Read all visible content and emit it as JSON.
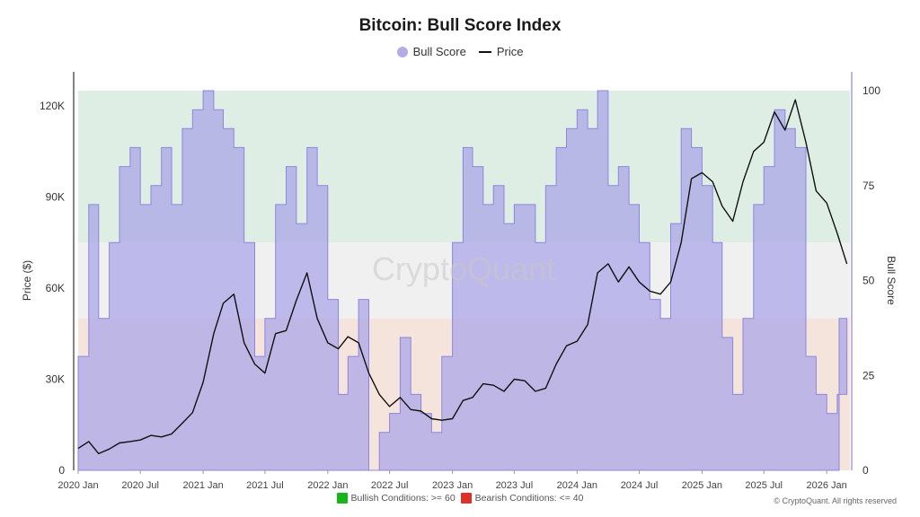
{
  "chart_data": {
    "type": "area",
    "title": "Bitcoin: Bull Score Index",
    "x_tick_labels": [
      "2020 Jan",
      "2020 Jul",
      "2021 Jan",
      "2021 Jul",
      "2022 Jan",
      "2022 Jul",
      "2023 Jan",
      "2023 Jul",
      "2024 Jan",
      "2024 Jul",
      "2025 Jan",
      "2025 Jul",
      "2026 Jan"
    ],
    "x_range": [
      "2020-01-01",
      "2026-03-10"
    ],
    "y_left": {
      "label": "Price ($)",
      "range": [
        0,
        125000
      ],
      "tick_values": [
        0,
        30000,
        60000,
        90000,
        120000
      ],
      "tick_labels": [
        "0",
        "30K",
        "60K",
        "90K",
        "120K"
      ]
    },
    "y_right": {
      "label": "Bull Score",
      "range": [
        0,
        100
      ],
      "tick_values": [
        0,
        25,
        50,
        75,
        100
      ],
      "tick_labels": [
        "0",
        "25",
        "50",
        "75",
        "100"
      ]
    },
    "zones": [
      {
        "name": "bullish",
        "from": 60,
        "to": 100,
        "color": "#dfeee4"
      },
      {
        "name": "neutral",
        "from": 40,
        "to": 60,
        "color": "#f0f0f0"
      },
      {
        "name": "bearish",
        "from": 0,
        "to": 40,
        "color": "#f5e4dc"
      }
    ],
    "series": [
      {
        "name": "Bull Score",
        "axis": "right",
        "color": "#a9a3e8",
        "x": [
          "2020-01-01",
          "2020-02-01",
          "2020-03-01",
          "2020-04-01",
          "2020-05-01",
          "2020-06-01",
          "2020-07-01",
          "2020-08-01",
          "2020-09-01",
          "2020-10-01",
          "2020-11-01",
          "2020-12-01",
          "2021-01-01",
          "2021-02-01",
          "2021-03-01",
          "2021-04-01",
          "2021-05-01",
          "2021-06-01",
          "2021-07-01",
          "2021-08-01",
          "2021-09-01",
          "2021-10-01",
          "2021-11-01",
          "2021-12-01",
          "2022-01-01",
          "2022-02-01",
          "2022-03-01",
          "2022-04-01",
          "2022-05-01",
          "2022-06-01",
          "2022-07-01",
          "2022-08-01",
          "2022-09-01",
          "2022-10-01",
          "2022-11-01",
          "2022-12-01",
          "2023-01-01",
          "2023-02-01",
          "2023-03-01",
          "2023-04-01",
          "2023-05-01",
          "2023-06-01",
          "2023-07-01",
          "2023-08-01",
          "2023-09-01",
          "2023-10-01",
          "2023-11-01",
          "2023-12-01",
          "2024-01-01",
          "2024-02-01",
          "2024-03-01",
          "2024-04-01",
          "2024-05-01",
          "2024-06-01",
          "2024-07-01",
          "2024-08-01",
          "2024-09-01",
          "2024-10-01",
          "2024-11-01",
          "2024-12-01",
          "2025-01-01",
          "2025-02-01",
          "2025-03-01",
          "2025-04-01",
          "2025-05-01",
          "2025-06-01",
          "2025-07-01",
          "2025-08-01",
          "2025-09-01",
          "2025-10-01",
          "2025-11-01",
          "2025-12-01",
          "2026-01-01",
          "2026-02-01",
          "2026-03-01"
        ],
        "values": [
          30,
          70,
          40,
          60,
          80,
          85,
          70,
          75,
          85,
          70,
          90,
          95,
          100,
          95,
          90,
          85,
          60,
          30,
          40,
          70,
          80,
          65,
          85,
          75,
          45,
          20,
          30,
          45,
          0,
          10,
          15,
          35,
          20,
          15,
          10,
          30,
          60,
          85,
          80,
          70,
          75,
          65,
          70,
          70,
          60,
          75,
          85,
          90,
          95,
          90,
          100,
          75,
          80,
          70,
          60,
          45,
          40,
          65,
          90,
          85,
          75,
          60,
          35,
          20,
          40,
          70,
          80,
          95,
          90,
          85,
          30,
          20,
          15,
          20,
          40
        ]
      },
      {
        "name": "Price",
        "axis": "left",
        "color": "#111111",
        "x": [
          "2020-01-01",
          "2020-02-01",
          "2020-03-01",
          "2020-04-01",
          "2020-05-01",
          "2020-06-01",
          "2020-07-01",
          "2020-08-01",
          "2020-09-01",
          "2020-10-01",
          "2020-11-01",
          "2020-12-01",
          "2021-01-01",
          "2021-02-01",
          "2021-03-01",
          "2021-04-01",
          "2021-05-01",
          "2021-06-01",
          "2021-07-01",
          "2021-08-01",
          "2021-09-01",
          "2021-10-01",
          "2021-11-01",
          "2021-12-01",
          "2022-01-01",
          "2022-02-01",
          "2022-03-01",
          "2022-04-01",
          "2022-05-01",
          "2022-06-01",
          "2022-07-01",
          "2022-08-01",
          "2022-09-01",
          "2022-10-01",
          "2022-11-01",
          "2022-12-01",
          "2023-01-01",
          "2023-02-01",
          "2023-03-01",
          "2023-04-01",
          "2023-05-01",
          "2023-06-01",
          "2023-07-01",
          "2023-08-01",
          "2023-09-01",
          "2023-10-01",
          "2023-11-01",
          "2023-12-01",
          "2024-01-01",
          "2024-02-01",
          "2024-03-01",
          "2024-04-01",
          "2024-05-01",
          "2024-06-01",
          "2024-07-01",
          "2024-08-01",
          "2024-09-01",
          "2024-10-01",
          "2024-11-01",
          "2024-12-01",
          "2025-01-01",
          "2025-02-01",
          "2025-03-01",
          "2025-04-01",
          "2025-05-01",
          "2025-06-01",
          "2025-07-01",
          "2025-08-01",
          "2025-09-01",
          "2025-10-01",
          "2025-11-01",
          "2025-12-01",
          "2026-01-01",
          "2026-02-01",
          "2026-03-01"
        ],
        "values": [
          7200,
          9500,
          5500,
          7000,
          9000,
          9500,
          10000,
          11500,
          11000,
          12000,
          15500,
          19000,
          29000,
          45000,
          55000,
          58000,
          42000,
          35000,
          32000,
          45000,
          46000,
          56000,
          65000,
          50000,
          42000,
          40000,
          44000,
          42000,
          32000,
          25000,
          21000,
          24000,
          20000,
          19500,
          17000,
          16500,
          17000,
          23000,
          24000,
          28500,
          28000,
          26000,
          30000,
          29500,
          26000,
          27000,
          35000,
          41000,
          42500,
          48000,
          65000,
          68000,
          62000,
          67000,
          62000,
          59000,
          58000,
          62000,
          75000,
          96000,
          98000,
          95000,
          87000,
          82000,
          95000,
          105000,
          108000,
          118000,
          112000,
          122000,
          108000,
          92000,
          88000,
          78000,
          68000
        ]
      }
    ],
    "conditions": [
      {
        "label": "Bullish Conditions: >= 60",
        "color": "#17b51a"
      },
      {
        "label": "Bearish Conditions: <= 40",
        "color": "#e0302a"
      }
    ]
  },
  "watermark": "CryptoQuant",
  "copyright": "© CryptoQuant. All rights reserved"
}
